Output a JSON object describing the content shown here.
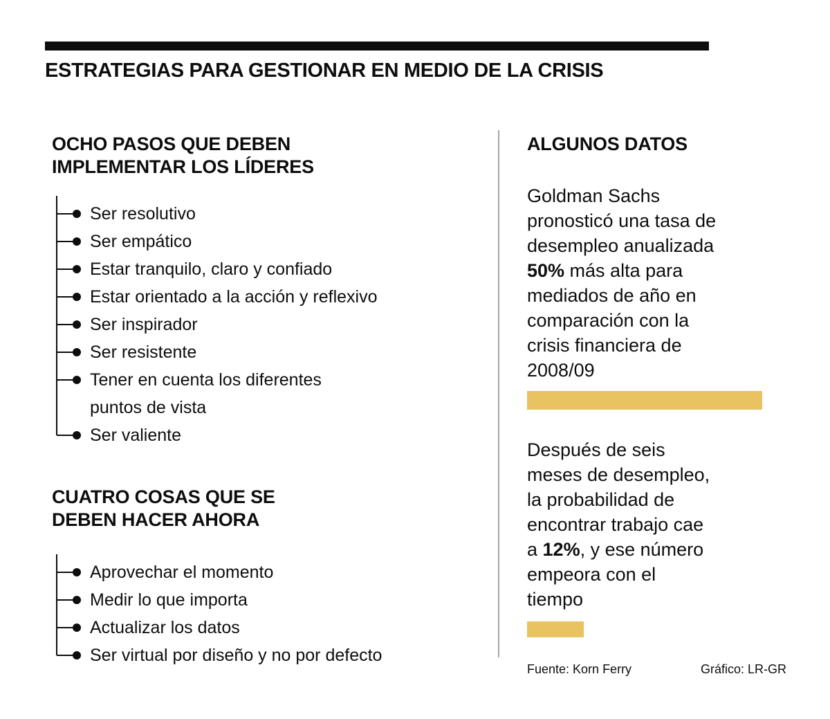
{
  "header": {
    "title": "ESTRATEGIAS PARA GESTIONAR EN MEDIO DE LA CRISIS"
  },
  "left_column": {
    "steps_section": {
      "heading": "OCHO PASOS QUE DEBEN\nIMPLEMENTAR LOS LÍDERES",
      "items": [
        "Ser resolutivo",
        "Ser empático",
        "Estar tranquilo, claro y confiado",
        "Estar orientado a la acción y reflexivo",
        "Ser inspirador",
        "Ser resistente",
        "Tener en cuenta los diferentes\npuntos de vista",
        "Ser valiente"
      ]
    },
    "actions_section": {
      "heading": "CUATRO COSAS QUE SE\nDEBEN HACER AHORA",
      "items": [
        "Aprovechar el momento",
        "Medir lo que importa",
        "Actualizar los datos",
        "Ser virtual por diseño y no por defecto"
      ]
    }
  },
  "right_column": {
    "heading": "ALGUNOS DATOS",
    "fact1": {
      "text_before": "Goldman Sachs\npronosticó una tasa de\ndesempleo anualizada\n",
      "highlight": "50%",
      "text_after": " más alta para\nmediados de año en\ncomparación con la\ncrisis financiera de\n2008/09"
    },
    "fact2": {
      "text_before": "Después de seis\nmeses de desempleo,\nla probabilidad de\nencontrar trabajo cae\na ",
      "highlight": "12%",
      "text_after": ", y ese número\nempeora con el\ntiempo"
    },
    "bars": {
      "color": "#E9C262",
      "bar1_value_pct": 50,
      "bar2_value_pct": 12
    },
    "footer": {
      "source": "Fuente: Korn Ferry",
      "credit": "Gráfico: LR-GR"
    }
  }
}
